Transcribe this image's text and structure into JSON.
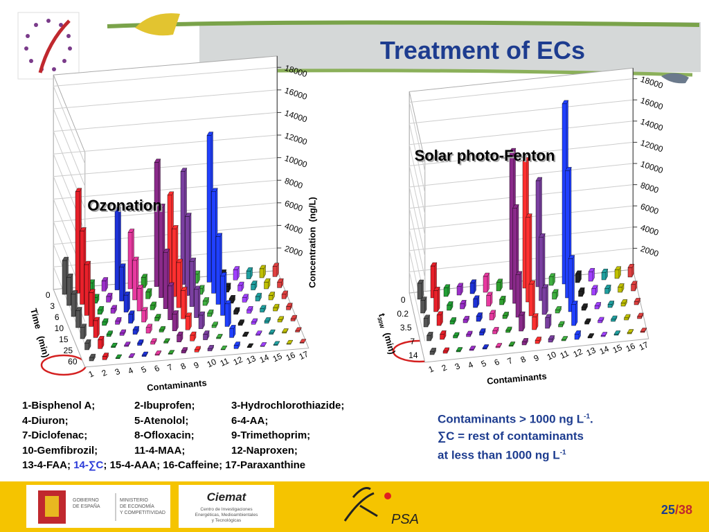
{
  "header": {
    "title": "Treatment of ECs"
  },
  "chart_data": [
    {
      "type": "bar3d",
      "title": "Ozonation",
      "x_label": "Contaminants",
      "y_label": "Concentration  (ng/L)",
      "depth_label": "Time   (min)",
      "categories": [
        "1",
        "2",
        "3",
        "4",
        "5",
        "6",
        "7",
        "8",
        "9",
        "10",
        "11",
        "12",
        "13",
        "14",
        "15",
        "16",
        "17"
      ],
      "depth_categories": [
        "0",
        "3",
        "6",
        "10",
        "15",
        "25",
        "60"
      ],
      "colors": [
        "#555555",
        "#e8202a",
        "#22a035",
        "#9b2fc9",
        "#1e32d8",
        "#e83aa0",
        "#2fa02f",
        "#8a2a8a",
        "#ff3030",
        "#7a3fa0",
        "#3fb040",
        "#2040ff",
        "#222222",
        "#a040ff",
        "#20a0a0",
        "#c0c000",
        "#e04040"
      ],
      "ylim": [
        0,
        19000
      ],
      "yticks": [
        2000,
        4000,
        6000,
        8000,
        10000,
        12000,
        14000,
        16000,
        18000
      ],
      "series": [
        {
          "values": [
            3000,
            9000,
            800,
            900,
            7000,
            5000,
            900,
            11000,
            8000,
            10000,
            800,
            13000,
            700,
            900,
            700,
            800,
            900
          ]
        },
        {
          "values": [
            2500,
            6500,
            500,
            500,
            3000,
            3500,
            600,
            8000,
            6000,
            7000,
            500,
            9000,
            500,
            500,
            500,
            600,
            500
          ]
        },
        {
          "values": [
            2000,
            4500,
            400,
            400,
            1500,
            2000,
            400,
            5000,
            4000,
            4000,
            400,
            6000,
            400,
            400,
            400,
            400,
            400
          ]
        },
        {
          "values": [
            1500,
            3000,
            300,
            300,
            800,
            1000,
            300,
            3000,
            2500,
            2500,
            300,
            3500,
            300,
            300,
            300,
            300,
            300
          ]
        },
        {
          "values": [
            1000,
            1500,
            200,
            200,
            400,
            500,
            200,
            1500,
            1200,
            1200,
            200,
            2000,
            200,
            200,
            200,
            200,
            200
          ]
        },
        {
          "values": [
            600,
            800,
            100,
            100,
            200,
            200,
            100,
            600,
            500,
            500,
            100,
            800,
            100,
            100,
            100,
            100,
            100
          ]
        },
        {
          "values": [
            300,
            300,
            50,
            50,
            100,
            100,
            50,
            200,
            200,
            200,
            50,
            300,
            50,
            50,
            50,
            50,
            50
          ]
        }
      ]
    },
    {
      "type": "bar3d",
      "title": "Solar photo-Fenton",
      "x_label": "Contaminants",
      "depth_symbol": "t",
      "depth_subscript": "30W",
      "depth_label": "(min)",
      "categories": [
        "1",
        "2",
        "3",
        "4",
        "5",
        "6",
        "7",
        "8",
        "9",
        "10",
        "11",
        "12",
        "13",
        "14",
        "15",
        "16",
        "17"
      ],
      "depth_categories": [
        "0",
        "0.2",
        "3.5",
        "7",
        "14"
      ],
      "colors": [
        "#555555",
        "#e8202a",
        "#22a035",
        "#9b2fc9",
        "#1e32d8",
        "#e83aa0",
        "#2fa02f",
        "#8a2a8a",
        "#ff3030",
        "#7a3fa0",
        "#3fb040",
        "#2040ff",
        "#222222",
        "#a040ff",
        "#20a0a0",
        "#c0c000",
        "#e04040"
      ],
      "ylim": [
        0,
        19000
      ],
      "yticks": [
        2000,
        4000,
        6000,
        8000,
        10000,
        12000,
        14000,
        16000,
        18000
      ],
      "series": [
        {
          "values": [
            1500,
            3000,
            800,
            800,
            1000,
            1500,
            800,
            13000,
            12000,
            10000,
            800,
            17000,
            800,
            900,
            700,
            800,
            900
          ]
        },
        {
          "values": [
            1200,
            2000,
            500,
            500,
            800,
            1000,
            500,
            9000,
            8000,
            6000,
            600,
            12000,
            500,
            600,
            500,
            500,
            600
          ]
        },
        {
          "values": [
            800,
            1000,
            300,
            300,
            500,
            600,
            300,
            4000,
            3000,
            2500,
            300,
            5000,
            300,
            300,
            300,
            300,
            300
          ]
        },
        {
          "values": [
            500,
            500,
            200,
            200,
            300,
            300,
            200,
            1500,
            1200,
            1000,
            200,
            2000,
            200,
            200,
            200,
            200,
            200
          ]
        },
        {
          "values": [
            300,
            200,
            100,
            100,
            100,
            100,
            100,
            300,
            300,
            300,
            100,
            500,
            100,
            100,
            100,
            100,
            100
          ]
        }
      ]
    }
  ],
  "legend": {
    "rows": [
      [
        "1-Bisphenol A;",
        "2-Ibuprofen;",
        "3-Hydrochlorothiazide;"
      ],
      [
        "4-Diuron;",
        "5-Atenolol;",
        "6-4-AA;"
      ],
      [
        "7-Diclofenac;",
        "8-Ofloxacin;",
        "9-Trimethoprim;"
      ],
      [
        "10-Gemfibrozil;",
        "11-4-MAA;",
        "12-Naproxen;"
      ]
    ],
    "last": [
      "13-4-FAA; ",
      "14-∑C",
      "; 15-4-AAA; 16-Caffeine; 17-Paraxanthine"
    ]
  },
  "note": {
    "line1": "Contaminants > 1000 ng L",
    "line1_sup": "-1",
    "line1_end": ".",
    "line2": "∑C =  rest of contaminants",
    "line3": "at less than 1000 ng L",
    "line3_sup": "-1"
  },
  "footer": {
    "gov": [
      "GOBIERNO",
      "DE ESPAÑA"
    ],
    "ministry": [
      "MINISTERIO",
      "DE ECONOMÍA",
      "Y COMPETITIVIDAD"
    ],
    "ciemat": "Ciemat",
    "ciemat_desc": [
      "Centro de Investigaciones",
      "Energéticas, Medioambientales",
      "y Tecnológicas"
    ],
    "psa": "PSA",
    "page": "25",
    "sep": "/",
    "total": "38"
  }
}
